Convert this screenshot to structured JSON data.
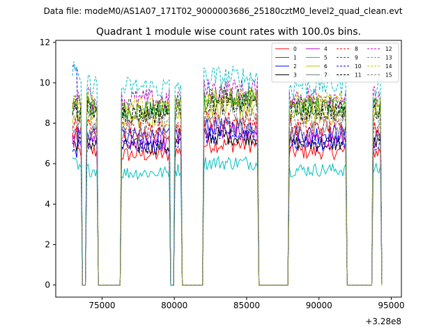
{
  "suptitle": "Data file: modeM0/AS1A07_171T02_9000003686_25180cztM0_level2_quad_clean.evt",
  "chart_data": {
    "type": "line",
    "title": "Quadrant 1 module wise count rates with 100.0s bins.",
    "xlabel": "",
    "ylabel": "",
    "x_offset_label": "+3.28e8",
    "xlim": [
      71800,
      95700
    ],
    "ylim": [
      -0.6,
      12.1
    ],
    "x_ticks": [
      75000,
      80000,
      85000,
      90000,
      95000
    ],
    "x_tick_labels": [
      "75000",
      "80000",
      "85000",
      "90000",
      "95000"
    ],
    "y_ticks": [
      0,
      2,
      4,
      6,
      8,
      10,
      12
    ],
    "y_tick_labels": [
      "0",
      "2",
      "4",
      "6",
      "8",
      "10",
      "12"
    ],
    "grid": false,
    "legend_position": "top-right",
    "bin_size_s": 100,
    "segments": [
      {
        "start": 72950,
        "end": 73550
      },
      {
        "start": 73950,
        "end": 74650
      },
      {
        "start": 76350,
        "end": 79650
      },
      {
        "start": 80050,
        "end": 80450
      },
      {
        "start": 82050,
        "end": 85750
      },
      {
        "start": 87950,
        "end": 91850
      },
      {
        "start": 93750,
        "end": 94250
      }
    ],
    "series": [
      {
        "name": "0",
        "color": "#ff0000",
        "dashed": false,
        "level": 6.6,
        "start": 7.4
      },
      {
        "name": "1",
        "color": "#008000",
        "dashed": false,
        "level": 8.8,
        "start": 8.9
      },
      {
        "name": "2",
        "color": "#0000ff",
        "dashed": false,
        "level": 7.5,
        "start": 6.6
      },
      {
        "name": "3",
        "color": "#000000",
        "dashed": false,
        "level": 7.0,
        "start": 7.0
      },
      {
        "name": "4",
        "color": "#bf00bf",
        "dashed": false,
        "level": 7.2,
        "start": 7.2
      },
      {
        "name": "5",
        "color": "#00bfbf",
        "dashed": false,
        "level": 5.7,
        "start": 6.0
      },
      {
        "name": "6",
        "color": "#bfbf00",
        "dashed": false,
        "level": 8.4,
        "start": 8.3
      },
      {
        "name": "7",
        "color": "#808080",
        "dashed": false,
        "level": 7.6,
        "start": 7.6
      },
      {
        "name": "8",
        "color": "#ff0000",
        "dashed": true,
        "level": 7.8,
        "start": 7.8
      },
      {
        "name": "9",
        "color": "#008000",
        "dashed": true,
        "level": 8.9,
        "start": 9.0
      },
      {
        "name": "10",
        "color": "#0000ff",
        "dashed": true,
        "level": 7.0,
        "start": 10.4
      },
      {
        "name": "11",
        "color": "#000000",
        "dashed": true,
        "level": 8.6,
        "start": 8.7
      },
      {
        "name": "12",
        "color": "#bf00bf",
        "dashed": true,
        "level": 9.3,
        "start": 9.2
      },
      {
        "name": "13",
        "color": "#00bfbf",
        "dashed": true,
        "level": 9.9,
        "start": 10.5
      },
      {
        "name": "14",
        "color": "#bfbf00",
        "dashed": true,
        "level": 9.0,
        "start": 9.1
      },
      {
        "name": "15",
        "color": "#808080",
        "dashed": true,
        "level": 8.2,
        "start": 8.2
      }
    ]
  }
}
